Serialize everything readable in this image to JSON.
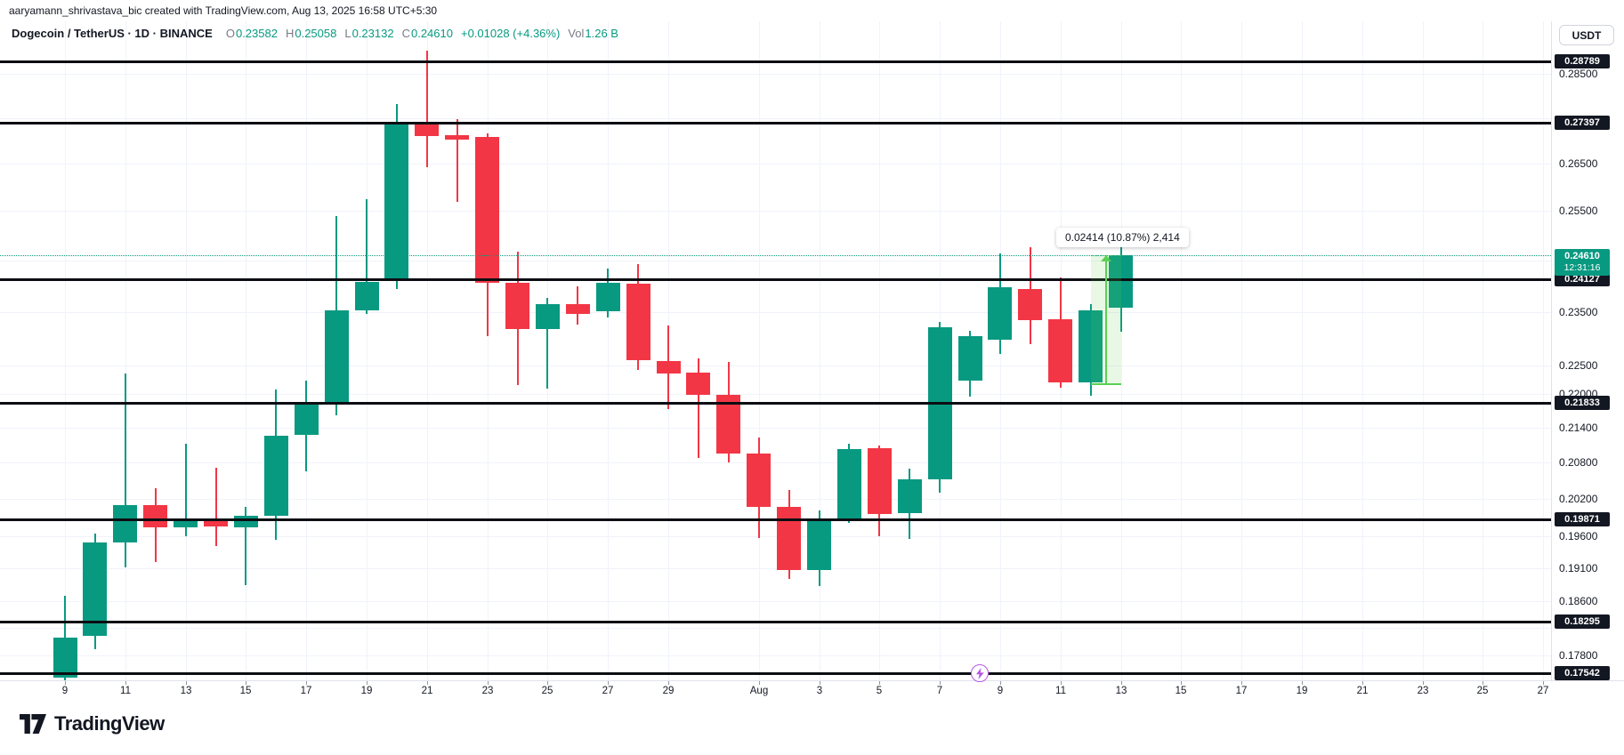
{
  "attribution_bar": {
    "text": "aaryamann_shrivastava_bic created with TradingView.com, Aug 13, 2025 16:58 UTC+5:30"
  },
  "symbol_bar": {
    "title": "Dogecoin / TetherUS · 1D · BINANCE",
    "ohlc": [
      {
        "label": "O",
        "value": "0.23582"
      },
      {
        "label": "H",
        "value": "0.25058"
      },
      {
        "label": "L",
        "value": "0.23132"
      },
      {
        "label": "C",
        "value": "0.24610"
      }
    ],
    "change": "+0.01028 (+4.36%)",
    "volume_label": "Vol",
    "volume_value": "1.26 B"
  },
  "price_axis": {
    "currency_button": "USDT",
    "visible_ticks": [
      "0.28500",
      "0.26500",
      "0.25500",
      "0.23500",
      "0.22500",
      "0.22000",
      "0.21400",
      "0.20800",
      "0.20200",
      "0.19600",
      "0.19100",
      "0.18600",
      "0.17800"
    ],
    "grid_only_ticks": [
      "0.27500",
      "0.24500",
      "0.18200"
    ],
    "level_labels": [
      "0.28789",
      "0.27397",
      "0.24127",
      "0.21833",
      "0.19871",
      "0.18295",
      "0.17542"
    ],
    "current_price_label": {
      "value": "0.24610",
      "countdown": "12:31:16"
    }
  },
  "time_axis": {
    "labels": [
      {
        "text": "9",
        "offset": 0
      },
      {
        "text": "11",
        "offset": 2
      },
      {
        "text": "13",
        "offset": 4
      },
      {
        "text": "15",
        "offset": 6
      },
      {
        "text": "17",
        "offset": 8
      },
      {
        "text": "19",
        "offset": 10
      },
      {
        "text": "21",
        "offset": 12
      },
      {
        "text": "23",
        "offset": 14
      },
      {
        "text": "25",
        "offset": 16
      },
      {
        "text": "27",
        "offset": 18
      },
      {
        "text": "29",
        "offset": 20
      },
      {
        "text": "Aug",
        "offset": 23
      },
      {
        "text": "3",
        "offset": 25
      },
      {
        "text": "5",
        "offset": 27
      },
      {
        "text": "7",
        "offset": 29
      },
      {
        "text": "9",
        "offset": 31
      },
      {
        "text": "11",
        "offset": 33
      },
      {
        "text": "13",
        "offset": 35
      },
      {
        "text": "15",
        "offset": 37
      },
      {
        "text": "17",
        "offset": 39
      },
      {
        "text": "19",
        "offset": 41
      },
      {
        "text": "21",
        "offset": 43
      },
      {
        "text": "23",
        "offset": 45
      },
      {
        "text": "25",
        "offset": 47
      },
      {
        "text": "27",
        "offset": 49
      }
    ]
  },
  "chart_data": {
    "type": "candlestick",
    "title": "Dogecoin / TetherUS 1D BINANCE",
    "symbol": "DOGEUSDT",
    "interval": "1D",
    "exchange": "BINANCE",
    "scale": "logarithmic",
    "ylim": [
      0.1735,
      0.2915
    ],
    "grid": true,
    "legend_position": "top-left",
    "candles": [
      {
        "date": "Jul 9",
        "o": 0.17475,
        "h": 0.18676,
        "l": 0.1742,
        "c": 0.18056
      },
      {
        "date": "Jul 10",
        "o": 0.18083,
        "h": 0.19644,
        "l": 0.17893,
        "c": 0.19502
      },
      {
        "date": "Jul 11",
        "o": 0.19502,
        "h": 0.22358,
        "l": 0.19105,
        "c": 0.20106
      },
      {
        "date": "Jul 12",
        "o": 0.20106,
        "h": 0.20372,
        "l": 0.1919,
        "c": 0.19741
      },
      {
        "date": "Jul 13",
        "o": 0.19741,
        "h": 0.21118,
        "l": 0.19598,
        "c": 0.19872
      },
      {
        "date": "Jul 14",
        "o": 0.19872,
        "h": 0.20722,
        "l": 0.19455,
        "c": 0.19756
      },
      {
        "date": "Jul 15",
        "o": 0.19741,
        "h": 0.20076,
        "l": 0.18838,
        "c": 0.1993
      },
      {
        "date": "Jul 16",
        "o": 0.19918,
        "h": 0.22071,
        "l": 0.19536,
        "c": 0.21258
      },
      {
        "date": "Jul 17",
        "o": 0.21273,
        "h": 0.2223,
        "l": 0.20654,
        "c": 0.21817
      },
      {
        "date": "Jul 18",
        "o": 0.21802,
        "h": 0.25397,
        "l": 0.21616,
        "c": 0.23528
      },
      {
        "date": "Jul 19",
        "o": 0.23528,
        "h": 0.25748,
        "l": 0.23463,
        "c": 0.2408
      },
      {
        "date": "Jul 20",
        "o": 0.24115,
        "h": 0.27811,
        "l": 0.2395,
        "c": 0.2739
      },
      {
        "date": "Jul 21",
        "o": 0.2739,
        "h": 0.29039,
        "l": 0.26425,
        "c": 0.27099
      },
      {
        "date": "Jul 22",
        "o": 0.27115,
        "h": 0.27473,
        "l": 0.25693,
        "c": 0.27021
      },
      {
        "date": "Jul 23",
        "o": 0.2708,
        "h": 0.27158,
        "l": 0.23045,
        "c": 0.24062
      },
      {
        "date": "Jul 24",
        "o": 0.24062,
        "h": 0.2468,
        "l": 0.2215,
        "c": 0.2318
      },
      {
        "date": "Jul 25",
        "o": 0.2318,
        "h": 0.2377,
        "l": 0.22087,
        "c": 0.2365
      },
      {
        "date": "Jul 26",
        "o": 0.2365,
        "h": 0.23994,
        "l": 0.23263,
        "c": 0.23463
      },
      {
        "date": "Jul 27",
        "o": 0.23514,
        "h": 0.24342,
        "l": 0.23396,
        "c": 0.24063
      },
      {
        "date": "Jul 28",
        "o": 0.24046,
        "h": 0.2443,
        "l": 0.22423,
        "c": 0.22602
      },
      {
        "date": "Jul 29",
        "o": 0.22585,
        "h": 0.23246,
        "l": 0.21724,
        "c": 0.22358
      },
      {
        "date": "Jul 30",
        "o": 0.22375,
        "h": 0.22636,
        "l": 0.20879,
        "c": 0.21976
      },
      {
        "date": "Jul 31",
        "o": 0.21976,
        "h": 0.22569,
        "l": 0.20804,
        "c": 0.20955
      },
      {
        "date": "Aug 1",
        "o": 0.20955,
        "h": 0.21228,
        "l": 0.19564,
        "c": 0.20076
      },
      {
        "date": "Aug 2",
        "o": 0.20076,
        "h": 0.20352,
        "l": 0.1894,
        "c": 0.19077
      },
      {
        "date": "Aug 3",
        "o": 0.19077,
        "h": 0.20018,
        "l": 0.18831,
        "c": 0.1986
      },
      {
        "date": "Aug 4",
        "o": 0.19846,
        "h": 0.2112,
        "l": 0.19803,
        "c": 0.21029
      },
      {
        "date": "Aug 5",
        "o": 0.21045,
        "h": 0.2109,
        "l": 0.19593,
        "c": 0.1996
      },
      {
        "date": "Aug 6",
        "o": 0.1996,
        "h": 0.20699,
        "l": 0.1955,
        "c": 0.20521
      },
      {
        "date": "Aug 7",
        "o": 0.20521,
        "h": 0.23314,
        "l": 0.20309,
        "c": 0.23213
      },
      {
        "date": "Aug 8",
        "o": 0.2223,
        "h": 0.23147,
        "l": 0.21945,
        "c": 0.23045
      },
      {
        "date": "Aug 9",
        "o": 0.22978,
        "h": 0.24645,
        "l": 0.22715,
        "c": 0.23977
      },
      {
        "date": "Aug 10",
        "o": 0.23943,
        "h": 0.24769,
        "l": 0.22897,
        "c": 0.23347
      },
      {
        "date": "Aug 11",
        "o": 0.23364,
        "h": 0.24166,
        "l": 0.22097,
        "c": 0.22198
      },
      {
        "date": "Aug 12",
        "o": 0.22198,
        "h": 0.2365,
        "l": 0.21962,
        "c": 0.23528
      },
      {
        "date": "Aug 13",
        "o": 0.23582,
        "h": 0.25058,
        "l": 0.23132,
        "c": 0.2461
      }
    ],
    "horizontal_levels": [
      0.28789,
      0.27397,
      0.24127,
      0.21833,
      0.19871,
      0.18295,
      0.17542
    ],
    "current_price": 0.2461,
    "measurement": {
      "from_price": 0.22196,
      "to_price": 0.2461,
      "from_bar": "Aug 12",
      "to_bar": "Aug 13",
      "label": "0.02414 (10.87%) 2,414"
    }
  },
  "overlays": {
    "tooltip_text": "0.02414 (10.87%) 2,414",
    "lightning_marker_price": 0.17542
  },
  "footer": {
    "logo_text": "TradingView"
  },
  "colors": {
    "up": "#089981",
    "down": "#f23645",
    "accent": "#089981",
    "level_line": "#0b0d12",
    "label_bg": "#131722",
    "label_text": "#ffffff",
    "measure_stroke": "#5ad152",
    "measure_fill": "rgba(101,211,82,0.15)",
    "grid": "#f0f3fa",
    "text": "#131722",
    "muted_text": "#787b86",
    "icon_purple": "#b558e6"
  }
}
